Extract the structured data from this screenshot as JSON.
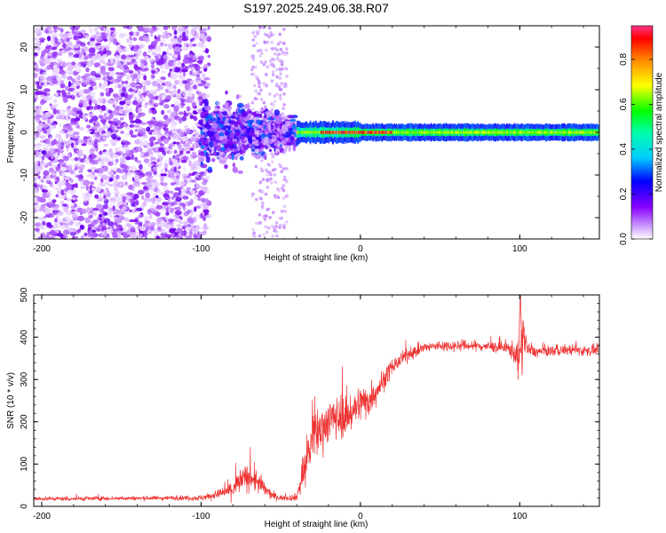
{
  "figure_title": "S197.2025.249.06.38.R07",
  "chart_data": [
    {
      "type": "heatmap",
      "title": "S197.2025.249.06.38.R07",
      "xlabel": "Height of straight line (km)",
      "ylabel": "Frequency (Hz)",
      "xlim": [
        -205,
        150
      ],
      "ylim": [
        -25,
        25
      ],
      "xticks": [
        -200,
        -100,
        0,
        100
      ],
      "yticks": [
        -20,
        -10,
        0,
        10,
        20
      ],
      "xtick_labels": [
        "-200",
        "-100",
        "0",
        "100"
      ],
      "ytick_labels": [
        "-20",
        "-10",
        "0",
        "10",
        "20"
      ],
      "description_regions": [
        {
          "x_range": [
            -205,
            -100
          ],
          "freq_range": [
            -25,
            25
          ],
          "amplitude_range": [
            0.0,
            0.15
          ],
          "pattern": "dense scattered noise"
        },
        {
          "x_range": [
            -100,
            -40
          ],
          "freq_range": [
            -15,
            10
          ],
          "amplitude_range": [
            0.05,
            0.3
          ],
          "pattern": "noise converging toward 0 Hz"
        },
        {
          "x_range": [
            -40,
            150
          ],
          "freq_range": [
            -1.5,
            1.5
          ],
          "amplitude_range": [
            0.3,
            0.95
          ],
          "pattern": "narrow band centered at 0 Hz"
        }
      ],
      "colorbar": {
        "label": "Normalized spectral amplitude",
        "range": [
          0,
          0.95
        ],
        "ticks": [
          0.0,
          0.2,
          0.4,
          0.6,
          0.8
        ],
        "tick_labels": [
          "0.0",
          "0.2",
          "0.4",
          "0.6",
          "0.8"
        ],
        "colors": [
          "#ffffff",
          "#9933ff",
          "#0000ff",
          "#00ffff",
          "#00ff00",
          "#ffff00",
          "#ff8800",
          "#ff0000",
          "#ff0066"
        ]
      }
    },
    {
      "type": "line",
      "xlabel": "Height of straight line (km)",
      "ylabel": "SNR (10 * v/v)",
      "xlim": [
        -205,
        150
      ],
      "ylim": [
        0,
        500
      ],
      "xticks": [
        -200,
        -100,
        0,
        100
      ],
      "yticks": [
        0,
        100,
        200,
        300,
        400,
        500
      ],
      "xtick_labels": [
        "-200",
        "-100",
        "0",
        "100"
      ],
      "ytick_labels": [
        "0",
        "100",
        "200",
        "300",
        "400",
        "500"
      ],
      "series": [
        {
          "name": "SNR",
          "color": "#ee3333",
          "x": [
            -205,
            -180,
            -160,
            -140,
            -120,
            -100,
            -90,
            -80,
            -75,
            -70,
            -65,
            -60,
            -55,
            -50,
            -45,
            -40,
            -35,
            -32,
            -30,
            -28,
            -25,
            -20,
            -15,
            -10,
            -5,
            0,
            5,
            10,
            15,
            20,
            25,
            30,
            40,
            50,
            60,
            70,
            80,
            90,
            95,
            100,
            102,
            105,
            110,
            120,
            130,
            140,
            150
          ],
          "y": [
            18,
            18,
            19,
            19,
            20,
            20,
            28,
            40,
            60,
            70,
            60,
            40,
            25,
            20,
            20,
            22,
            90,
            140,
            150,
            170,
            180,
            205,
            210,
            215,
            225,
            245,
            250,
            275,
            300,
            330,
            345,
            360,
            375,
            380,
            380,
            380,
            378,
            375,
            370,
            350,
            420,
            370,
            365,
            368,
            370,
            368,
            370
          ],
          "noise_amplitude": [
            8,
            8,
            8,
            8,
            8,
            10,
            15,
            40,
            50,
            50,
            45,
            30,
            15,
            10,
            10,
            15,
            80,
            100,
            100,
            100,
            90,
            80,
            80,
            80,
            75,
            70,
            65,
            55,
            40,
            30,
            25,
            25,
            20,
            20,
            20,
            20,
            20,
            22,
            35,
            60,
            60,
            30,
            20,
            20,
            20,
            20,
            20
          ]
        }
      ]
    }
  ]
}
